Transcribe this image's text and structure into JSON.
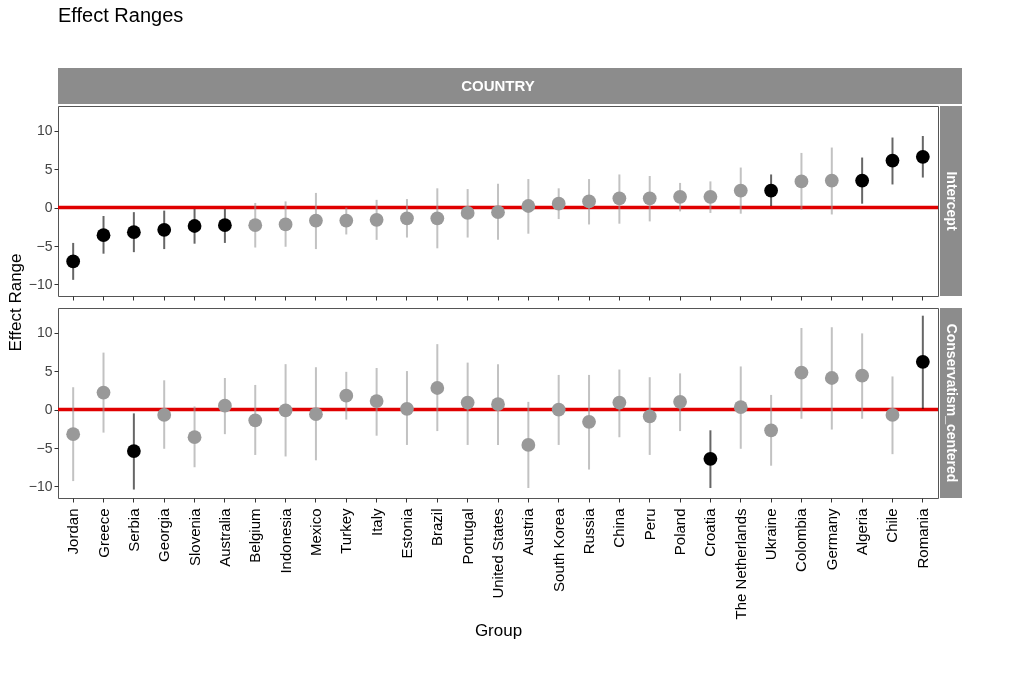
{
  "chart_data": [
    {
      "type": "scatter",
      "title": "Effect Ranges",
      "subtitle": "COUNTRY",
      "ylabel": "Effect Range",
      "y2label": "Intercept",
      "marker": "circle",
      "tick_labels": "y",
      "grid": false,
      "categories": [
        "Jordan",
        "Greece",
        "Serbia",
        "Georgia",
        "Slovenia",
        "Australia",
        "Belgium",
        "Indonesia",
        "Mexico",
        "Turkey",
        "Italy",
        "Estonia",
        "Brazil",
        "Portugal",
        "United States",
        "Austria",
        "South Korea",
        "Russia",
        "China",
        "Peru",
        "Poland",
        "Croatia",
        "The Netherlands",
        "Ukraine",
        "Colombia",
        "Germany",
        "Algeria",
        "Chile",
        "Romania"
      ],
      "values": [
        -7.0,
        -3.6,
        -3.2,
        -2.9,
        -2.4,
        -2.3,
        -2.3,
        -2.2,
        -1.7,
        -1.7,
        -1.6,
        -1.4,
        -1.4,
        -0.7,
        -0.6,
        0.2,
        0.5,
        0.8,
        1.2,
        1.2,
        1.4,
        1.4,
        2.2,
        2.2,
        3.4,
        3.5,
        3.5,
        6.1,
        6.6
      ],
      "errors": [
        [
          -9.4,
          -4.6
        ],
        [
          -6.0,
          -1.1
        ],
        [
          -5.8,
          -0.6
        ],
        [
          -5.4,
          -0.4
        ],
        [
          -4.7,
          -0.2
        ],
        [
          -4.6,
          -0.2
        ],
        [
          -5.2,
          0.6
        ],
        [
          -5.1,
          0.8
        ],
        [
          -5.4,
          1.9
        ],
        [
          -3.5,
          0.0
        ],
        [
          -4.2,
          1.0
        ],
        [
          -3.9,
          1.1
        ],
        [
          -5.3,
          2.5
        ],
        [
          -3.9,
          2.4
        ],
        [
          -4.2,
          3.1
        ],
        [
          -3.4,
          3.7
        ],
        [
          -1.5,
          2.5
        ],
        [
          -2.2,
          3.7
        ],
        [
          -2.1,
          4.3
        ],
        [
          -1.8,
          4.1
        ],
        [
          -0.5,
          3.2
        ],
        [
          -0.7,
          3.4
        ],
        [
          -0.8,
          5.2
        ],
        [
          0.2,
          4.3
        ],
        [
          -0.3,
          7.1
        ],
        [
          -0.9,
          7.8
        ],
        [
          0.5,
          6.5
        ],
        [
          3.0,
          9.1
        ],
        [
          3.9,
          9.3
        ]
      ],
      "colors": [
        "#000000",
        "#000000",
        "#000000",
        "#000000",
        "#000000",
        "#000000",
        "#999999",
        "#999999",
        "#999999",
        "#999999",
        "#999999",
        "#999999",
        "#999999",
        "#999999",
        "#999999",
        "#999999",
        "#999999",
        "#999999",
        "#999999",
        "#999999",
        "#999999",
        "#999999",
        "#999999",
        "#000000",
        "#999999",
        "#999999",
        "#000000",
        "#000000",
        "#000000"
      ],
      "ylim": [
        -11.5,
        13.2
      ],
      "yticks": [
        -10,
        -5,
        0,
        5,
        10
      ],
      "ref_lines": [
        {
          "axis": "y",
          "value": 0,
          "color": "#e00000"
        }
      ]
    },
    {
      "type": "scatter",
      "xlabel": "Group",
      "y2label": "Conservatism_centered",
      "marker": "circle",
      "grid": false,
      "categories": [
        "Jordan",
        "Greece",
        "Serbia",
        "Georgia",
        "Slovenia",
        "Australia",
        "Belgium",
        "Indonesia",
        "Mexico",
        "Turkey",
        "Italy",
        "Estonia",
        "Brazil",
        "Portugal",
        "United States",
        "Austria",
        "South Korea",
        "Russia",
        "China",
        "Peru",
        "Poland",
        "Croatia",
        "The Netherlands",
        "Ukraine",
        "Colombia",
        "Germany",
        "Algeria",
        "Chile",
        "Romania"
      ],
      "values": [
        -3.2,
        2.2,
        -5.4,
        -0.7,
        -3.6,
        0.5,
        -1.4,
        -0.1,
        -0.6,
        1.8,
        1.1,
        0.1,
        2.8,
        0.9,
        0.7,
        -4.6,
        0.0,
        -1.6,
        0.9,
        -0.9,
        1.0,
        -6.4,
        0.3,
        -2.7,
        4.8,
        4.1,
        4.4,
        -0.7,
        6.2
      ],
      "errors": [
        [
          -9.3,
          2.9
        ],
        [
          -3.0,
          7.4
        ],
        [
          -10.4,
          -0.5
        ],
        [
          -5.1,
          3.8
        ],
        [
          -7.5,
          0.4
        ],
        [
          -3.2,
          4.1
        ],
        [
          -5.9,
          3.2
        ],
        [
          -6.1,
          5.9
        ],
        [
          -6.6,
          5.5
        ],
        [
          -1.3,
          4.9
        ],
        [
          -3.4,
          5.4
        ],
        [
          -4.6,
          5.0
        ],
        [
          -2.8,
          8.5
        ],
        [
          -4.6,
          6.1
        ],
        [
          -4.6,
          5.9
        ],
        [
          -10.2,
          1.0
        ],
        [
          -4.6,
          4.5
        ],
        [
          -7.8,
          4.5
        ],
        [
          -3.6,
          5.2
        ],
        [
          -5.9,
          4.2
        ],
        [
          -2.8,
          4.7
        ],
        [
          -10.2,
          -2.7
        ],
        [
          -5.1,
          5.6
        ],
        [
          -7.3,
          1.9
        ],
        [
          -1.2,
          10.6
        ],
        [
          -2.6,
          10.7
        ],
        [
          -1.2,
          9.9
        ],
        [
          -5.8,
          4.3
        ],
        [
          0.1,
          12.2
        ]
      ],
      "colors": [
        "#999999",
        "#999999",
        "#000000",
        "#999999",
        "#999999",
        "#999999",
        "#999999",
        "#999999",
        "#999999",
        "#999999",
        "#999999",
        "#999999",
        "#999999",
        "#999999",
        "#999999",
        "#999999",
        "#999999",
        "#999999",
        "#999999",
        "#999999",
        "#999999",
        "#000000",
        "#999999",
        "#999999",
        "#999999",
        "#999999",
        "#999999",
        "#999999",
        "#000000"
      ],
      "ylim": [
        -11.5,
        13.2
      ],
      "yticks": [
        -10,
        -5,
        0,
        5,
        10
      ],
      "ref_lines": [
        {
          "axis": "y",
          "value": 0,
          "color": "#e00000"
        }
      ]
    }
  ]
}
